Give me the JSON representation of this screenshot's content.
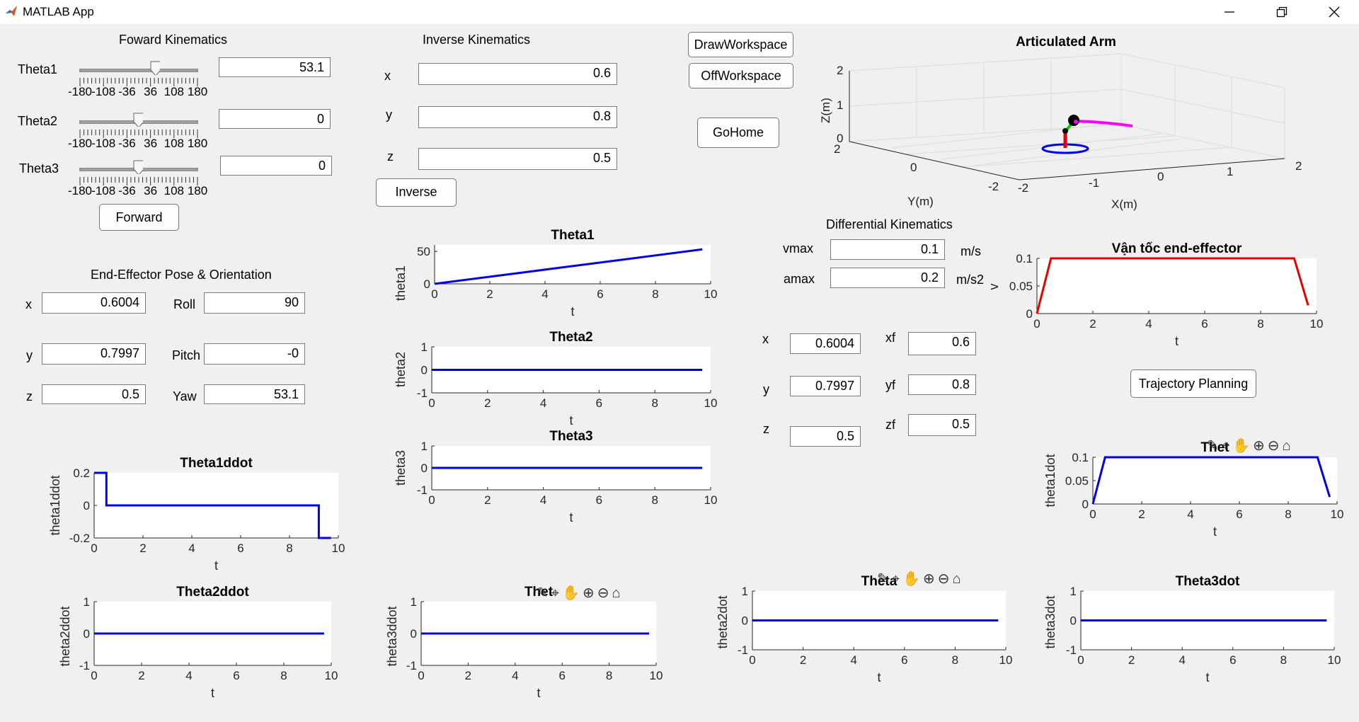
{
  "window": {
    "title": "MATLAB App"
  },
  "fk": {
    "title": "Foward Kinematics",
    "theta1_label": "Theta1",
    "theta2_label": "Theta2",
    "theta3_label": "Theta3",
    "theta1": "53.1",
    "theta2": "0",
    "theta3": "0",
    "slider_ticks": [
      "-180",
      "-108",
      "-36",
      "36",
      "108",
      "180"
    ],
    "slider_values": [
      53.1,
      0,
      0
    ],
    "forward_label": "Forward"
  },
  "ik": {
    "title": "Inverse Kinematics",
    "x_label": "x",
    "y_label": "y",
    "z_label": "z",
    "x": "0.6",
    "y": "0.8",
    "z": "0.5",
    "inverse_label": "Inverse"
  },
  "buttons": {
    "draw": "DrawWorkspace",
    "off": "OffWorkspace",
    "home": "GoHome",
    "traj": "Trajectory Planning"
  },
  "pose": {
    "title": "End-Effector Pose & Orientation",
    "x_label": "x",
    "y_label": "y",
    "z_label": "z",
    "roll_label": "Roll",
    "pitch_label": "Pitch",
    "yaw_label": "Yaw",
    "x": "0.6004",
    "y": "0.7997",
    "z": "0.5",
    "roll": "90",
    "pitch": "-0",
    "yaw": "53.1"
  },
  "dk": {
    "title": "Differential Kinematics",
    "vmax_label": "vmax",
    "amax_label": "amax",
    "vmax": "0.1",
    "amax": "0.2",
    "vmax_unit": "m/s",
    "amax_unit": "m/s2",
    "x_label": "x",
    "y_label": "y",
    "z_label": "z",
    "xf_label": "xf",
    "yf_label": "yf",
    "zf_label": "zf",
    "x": "0.6004",
    "y": "0.7997",
    "z": "0.5",
    "xf": "0.6",
    "yf": "0.8",
    "zf": "0.5"
  },
  "arm3d": {
    "title": "Articulated Arm",
    "xlabel": "X(m)",
    "ylabel": "Y(m)",
    "zlabel": "Z(m)",
    "z_ticks": [
      "0",
      "1",
      "2"
    ],
    "y_ticks": [
      "2",
      "0",
      "-2"
    ],
    "x_ticks": [
      "-2",
      "-1",
      "0",
      "1",
      "2"
    ]
  },
  "colors": {
    "line": "#0000e6",
    "red": "#e60000",
    "magenta": "#ff00ff",
    "green": "#00cc00"
  },
  "toolbar_icons": [
    "brush-icon",
    "data-tips-icon",
    "pan-icon",
    "zoom-in-icon",
    "zoom-out-icon",
    "home-icon"
  ],
  "chart_data": [
    {
      "id": "theta1",
      "type": "line",
      "title": "Theta1",
      "xlabel": "t",
      "ylabel": "theta1",
      "xlim": [
        0,
        10
      ],
      "ylim": [
        0,
        60
      ],
      "xticks": [
        0,
        2,
        4,
        6,
        8,
        10
      ],
      "yticks": [
        0,
        50
      ],
      "series": [
        {
          "x": [
            0,
            9.7
          ],
          "y": [
            0,
            53.1
          ]
        }
      ]
    },
    {
      "id": "theta2",
      "type": "line",
      "title": "Theta2",
      "xlabel": "t",
      "ylabel": "theta2",
      "xlim": [
        0,
        10
      ],
      "ylim": [
        -1,
        1
      ],
      "xticks": [
        0,
        2,
        4,
        6,
        8,
        10
      ],
      "yticks": [
        -1,
        0,
        1
      ],
      "series": [
        {
          "x": [
            0,
            9.7
          ],
          "y": [
            0,
            0
          ]
        }
      ]
    },
    {
      "id": "theta3",
      "type": "line",
      "title": "Theta3",
      "xlabel": "t",
      "ylabel": "theta3",
      "xlim": [
        0,
        10
      ],
      "ylim": [
        -1,
        1
      ],
      "xticks": [
        0,
        2,
        4,
        6,
        8,
        10
      ],
      "yticks": [
        -1,
        0,
        1
      ],
      "series": [
        {
          "x": [
            0,
            9.7
          ],
          "y": [
            0,
            0
          ]
        }
      ]
    },
    {
      "id": "vel",
      "type": "line",
      "title": "Vận tốc end-effector",
      "xlabel": "t",
      "ylabel": "v",
      "xlim": [
        0,
        10
      ],
      "ylim": [
        0,
        0.1
      ],
      "xticks": [
        0,
        2,
        4,
        6,
        8,
        10
      ],
      "yticks": [
        "0",
        "0.05",
        "0.1"
      ],
      "series": [
        {
          "x": [
            0,
            0.5,
            9.2,
            9.7
          ],
          "y": [
            0,
            0.1,
            0.1,
            0.015
          ]
        }
      ]
    },
    {
      "id": "theta1dot",
      "type": "line",
      "title": "Thet",
      "xlabel": "t",
      "ylabel": "theta1dot",
      "xlim": [
        0,
        10
      ],
      "ylim": [
        0,
        0.1
      ],
      "xticks": [
        0,
        2,
        4,
        6,
        8,
        10
      ],
      "yticks": [
        "0",
        "0.05",
        "0.1"
      ],
      "series": [
        {
          "x": [
            0,
            0.5,
            9.2,
            9.7
          ],
          "y": [
            0,
            0.1,
            0.1,
            0.015
          ]
        }
      ]
    },
    {
      "id": "theta1ddot",
      "type": "line",
      "title": "Theta1ddot",
      "xlabel": "t",
      "ylabel": "theta1ddot",
      "xlim": [
        0,
        10
      ],
      "ylim": [
        -0.2,
        0.2
      ],
      "xticks": [
        0,
        2,
        4,
        6,
        8,
        10
      ],
      "yticks": [
        "-0.2",
        "0",
        "0.2"
      ],
      "series": [
        {
          "x": [
            0,
            0.5,
            0.5,
            9.2,
            9.2,
            9.7
          ],
          "y": [
            0.2,
            0.2,
            0,
            0,
            -0.2,
            -0.2
          ]
        }
      ]
    },
    {
      "id": "theta2ddot",
      "type": "line",
      "title": "Theta2ddot",
      "xlabel": "t",
      "ylabel": "theta2ddot",
      "xlim": [
        0,
        10
      ],
      "ylim": [
        -1,
        1
      ],
      "xticks": [
        0,
        2,
        4,
        6,
        8,
        10
      ],
      "yticks": [
        -1,
        0,
        1
      ],
      "series": [
        {
          "x": [
            0,
            9.7
          ],
          "y": [
            0,
            0
          ]
        }
      ]
    },
    {
      "id": "theta3ddot",
      "type": "line",
      "title": "Thet",
      "xlabel": "t",
      "ylabel": "theta3ddot",
      "xlim": [
        0,
        10
      ],
      "ylim": [
        -1,
        1
      ],
      "xticks": [
        0,
        2,
        4,
        6,
        8,
        10
      ],
      "yticks": [
        -1,
        0,
        1
      ],
      "series": [
        {
          "x": [
            0,
            9.7
          ],
          "y": [
            0,
            0
          ]
        }
      ]
    },
    {
      "id": "theta2dot",
      "type": "line",
      "title": "Theta",
      "xlabel": "t",
      "ylabel": "theta2dot",
      "xlim": [
        0,
        10
      ],
      "ylim": [
        -1,
        1
      ],
      "xticks": [
        0,
        2,
        4,
        6,
        8,
        10
      ],
      "yticks": [
        -1,
        0,
        1
      ],
      "series": [
        {
          "x": [
            0,
            9.7
          ],
          "y": [
            0,
            0
          ]
        }
      ]
    },
    {
      "id": "theta3dot",
      "type": "line",
      "title": "Theta3dot",
      "xlabel": "t",
      "ylabel": "theta3dot",
      "xlim": [
        0,
        10
      ],
      "ylim": [
        -1,
        1
      ],
      "xticks": [
        0,
        2,
        4,
        6,
        8,
        10
      ],
      "yticks": [
        -1,
        0,
        1
      ],
      "series": [
        {
          "x": [
            0,
            9.7
          ],
          "y": [
            0,
            0
          ]
        }
      ]
    }
  ]
}
